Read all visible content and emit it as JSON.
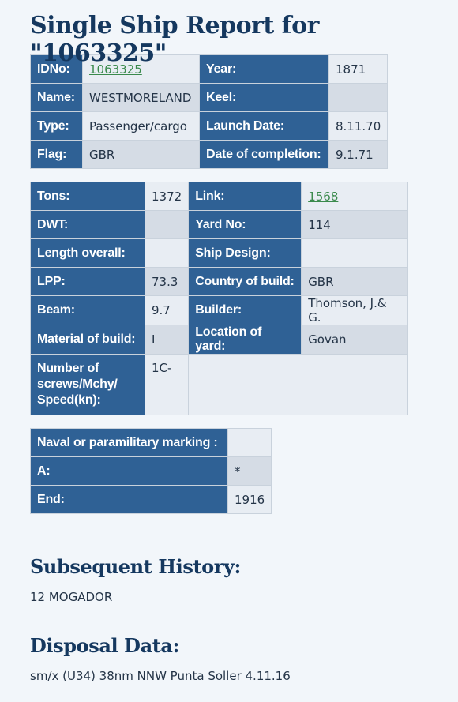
{
  "title": "Single Ship Report for \"1063325\"",
  "general": {
    "idno_label": "IDNo:",
    "idno_value": "1063325",
    "year_label": "Year:",
    "year_value": "1871",
    "name_label": "Name:",
    "name_value": "WESTMORELAND",
    "keel_label": "Keel:",
    "keel_value": "",
    "type_label": "Type:",
    "type_value": "Passenger/cargo",
    "launch_label": "Launch Date:",
    "launch_value": "8.11.70",
    "flag_label": "Flag:",
    "flag_value": "GBR",
    "completion_label": "Date of completion:",
    "completion_value": "9.1.71"
  },
  "specs": {
    "tons_label": "Tons:",
    "tons_value": "1372",
    "link_label": "Link:",
    "link_value": "1568",
    "dwt_label": "DWT:",
    "dwt_value": "",
    "yard_no_label": "Yard No:",
    "yard_no_value": "114",
    "length_label": "Length overall:",
    "length_value": "",
    "design_label": "Ship Design:",
    "design_value": "",
    "lpp_label": "LPP:",
    "lpp_value": "73.3",
    "country_label": "Country of build:",
    "country_value": "GBR",
    "beam_label": "Beam:",
    "beam_value": "9.7",
    "builder_label": "Builder:",
    "builder_value": "Thomson, J.& G.",
    "material_label": "Material of build:",
    "material_value": "I",
    "location_label": "Location of yard:",
    "location_value": "Govan",
    "screws_label": "Number of screws/Mchy/ Speed(kn):",
    "screws_value": "1C-"
  },
  "naval": {
    "marking_label": "Naval or paramilitary marking :",
    "marking_value": "",
    "a_label": "A:",
    "a_value": "*",
    "end_label": "End:",
    "end_value": "1916"
  },
  "subsequent": {
    "heading": "Subsequent History:",
    "text": "12 MOGADOR"
  },
  "disposal": {
    "heading": "Disposal Data:",
    "text": "sm/x (U34) 38nm NNW Punta Soller 4.11.16"
  }
}
